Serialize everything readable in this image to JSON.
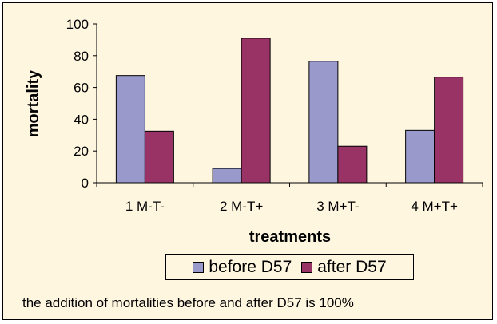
{
  "chart_data": {
    "type": "bar",
    "title": "",
    "xlabel": "treatments",
    "ylabel": "mortality",
    "categories": [
      "1 M-T-",
      "2 M-T+",
      "3 M+T-",
      "4 M+T+"
    ],
    "series": [
      {
        "name": "before D57",
        "values": [
          67.5,
          9,
          76.5,
          33
        ],
        "color": "#9999CC"
      },
      {
        "name": "after D57",
        "values": [
          32.5,
          91,
          23,
          66.5
        ],
        "color": "#993366"
      }
    ],
    "ylim": [
      0,
      100
    ],
    "yticks": [
      0,
      20,
      40,
      60,
      80,
      100
    ],
    "grid": false,
    "legend_position": "bottom"
  },
  "note": "the addition of mortalities before and after D57  is 100%",
  "colors": {
    "background": "#FFF6E0",
    "before": "#9999CC",
    "after": "#993366"
  }
}
